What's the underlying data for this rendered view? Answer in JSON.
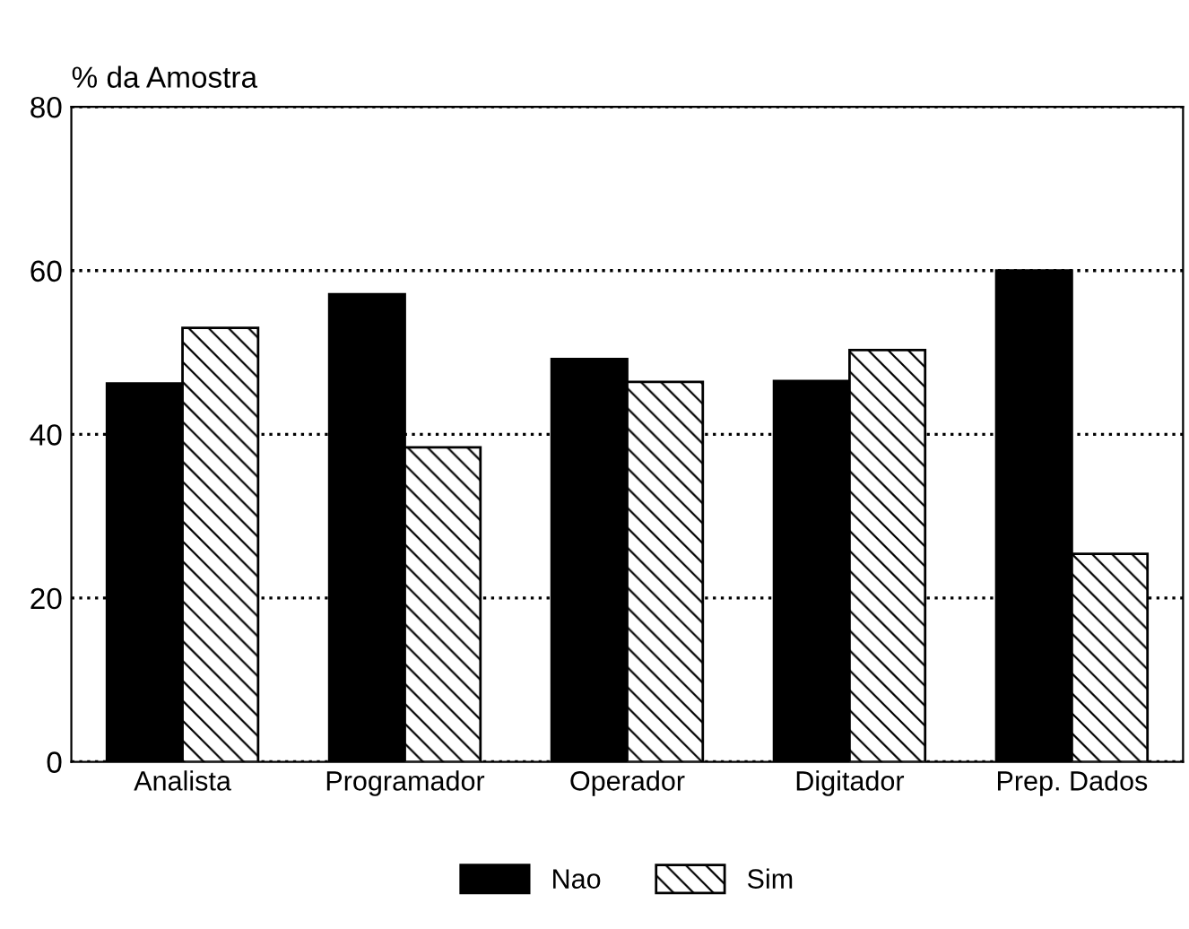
{
  "chart_data": {
    "type": "bar",
    "ylabel": "% da Amostra",
    "categories": [
      "Analista",
      "Programador",
      "Operador",
      "Digitador",
      "Prep. Dados"
    ],
    "series": [
      {
        "name": "Nao",
        "color": "#000000",
        "values": [
          46.2,
          57.1,
          49.2,
          46.5,
          60.0
        ]
      },
      {
        "name": "Sim",
        "color": "#000000",
        "values": [
          53.0,
          38.4,
          46.4,
          50.3,
          25.4
        ]
      }
    ],
    "ylim": [
      0,
      80
    ],
    "yticks": [
      0,
      20,
      40,
      60,
      80
    ],
    "grid": "y",
    "legend": "bottom"
  }
}
